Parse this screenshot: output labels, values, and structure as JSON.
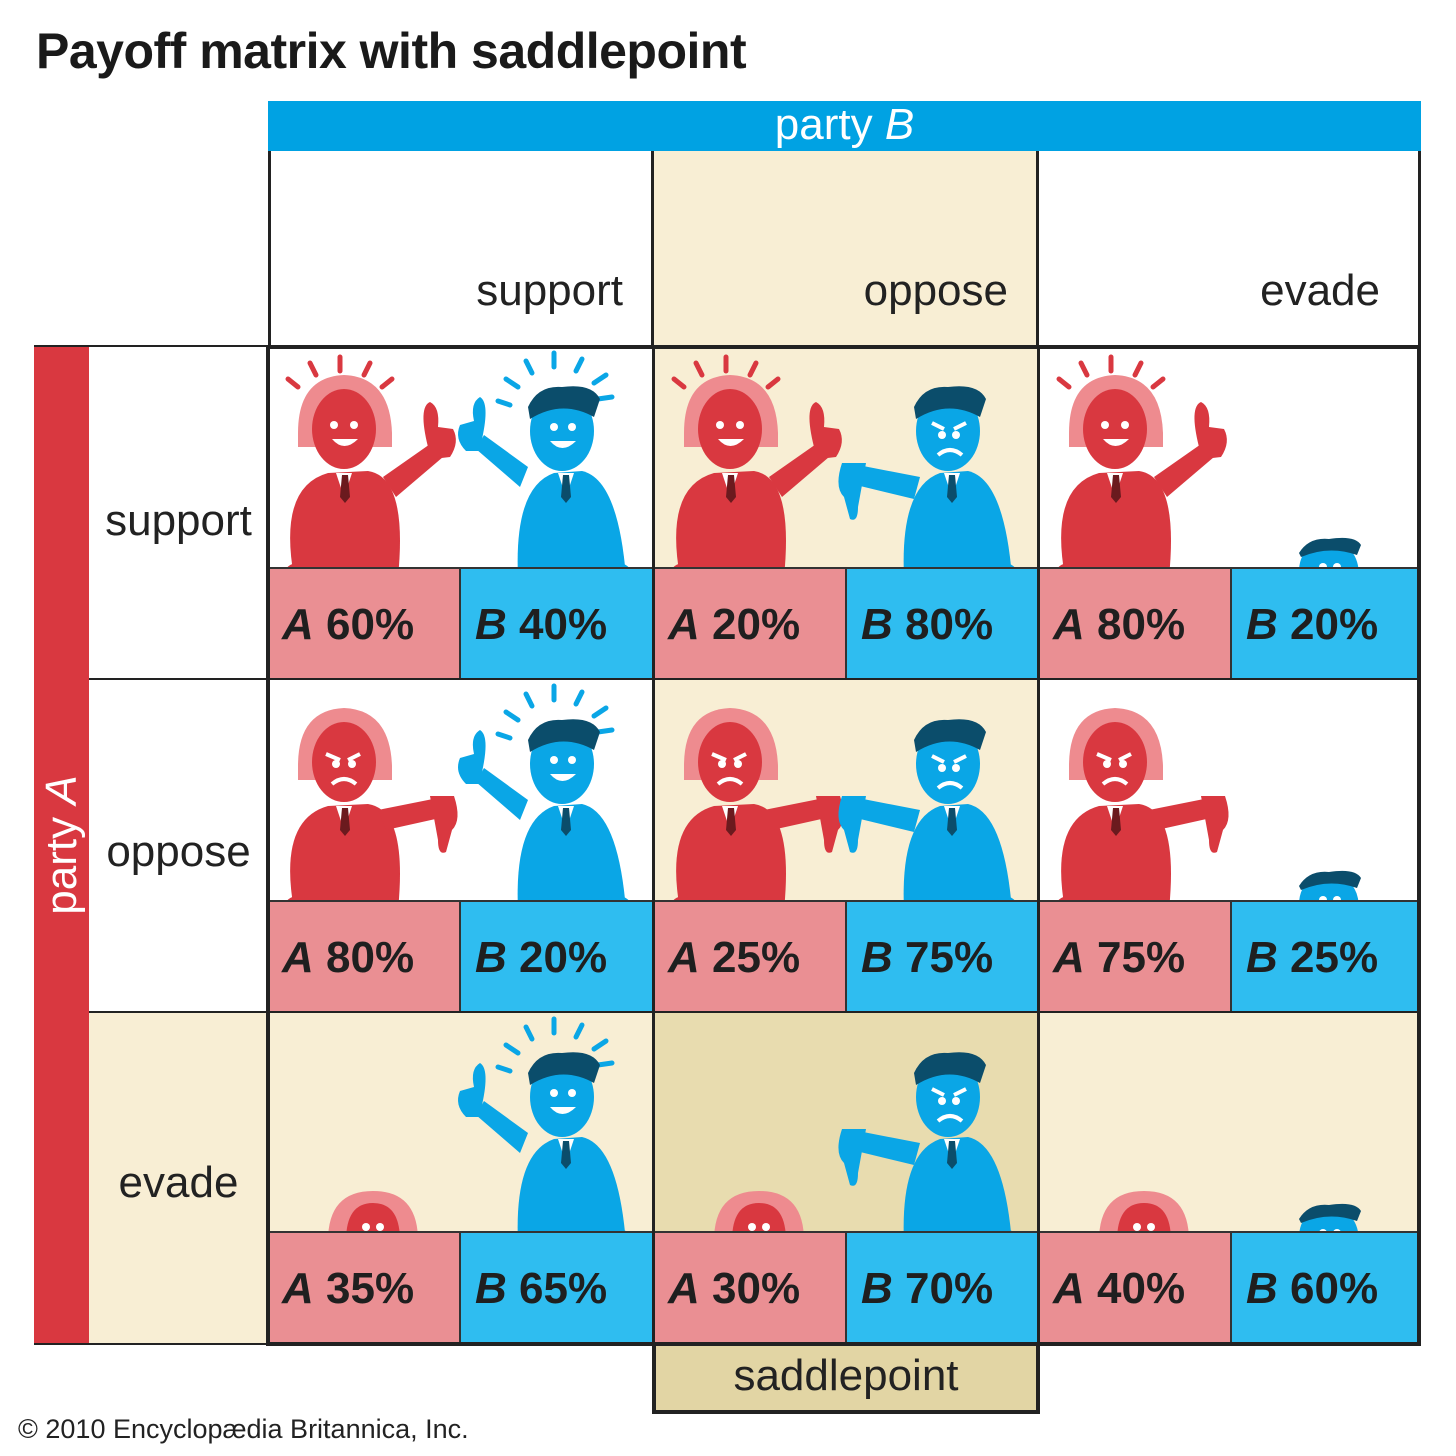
{
  "title": "Payoff matrix with saddlepoint",
  "party_b_label": "party B",
  "party_a_label": "party A",
  "columns": [
    "support",
    "oppose",
    "evade"
  ],
  "rows": [
    "support",
    "oppose",
    "evade"
  ],
  "cells": [
    [
      {
        "a": "A 60%",
        "b": "B 40%"
      },
      {
        "a": "A 20%",
        "b": "B 80%"
      },
      {
        "a": "A 80%",
        "b": "B 20%"
      }
    ],
    [
      {
        "a": "A 80%",
        "b": "B 20%"
      },
      {
        "a": "A 25%",
        "b": "B 75%"
      },
      {
        "a": "A 75%",
        "b": "B 25%"
      }
    ],
    [
      {
        "a": "A 35%",
        "b": "B 65%"
      },
      {
        "a": "A 30%",
        "b": "B 70%"
      },
      {
        "a": "A 40%",
        "b": "B 60%"
      }
    ]
  ],
  "saddlepoint_label": "saddlepoint",
  "copyright": "© 2010 Encyclopædia Britannica, Inc.",
  "colors": {
    "party_a_red": "#d93840",
    "party_b_blue": "#00a2e3",
    "a_label_bg": "#ea8f93",
    "b_label_bg": "#2fbdf0",
    "highlight_bg": "#f8eed4",
    "saddle_bg": "#e2d5a4"
  }
}
